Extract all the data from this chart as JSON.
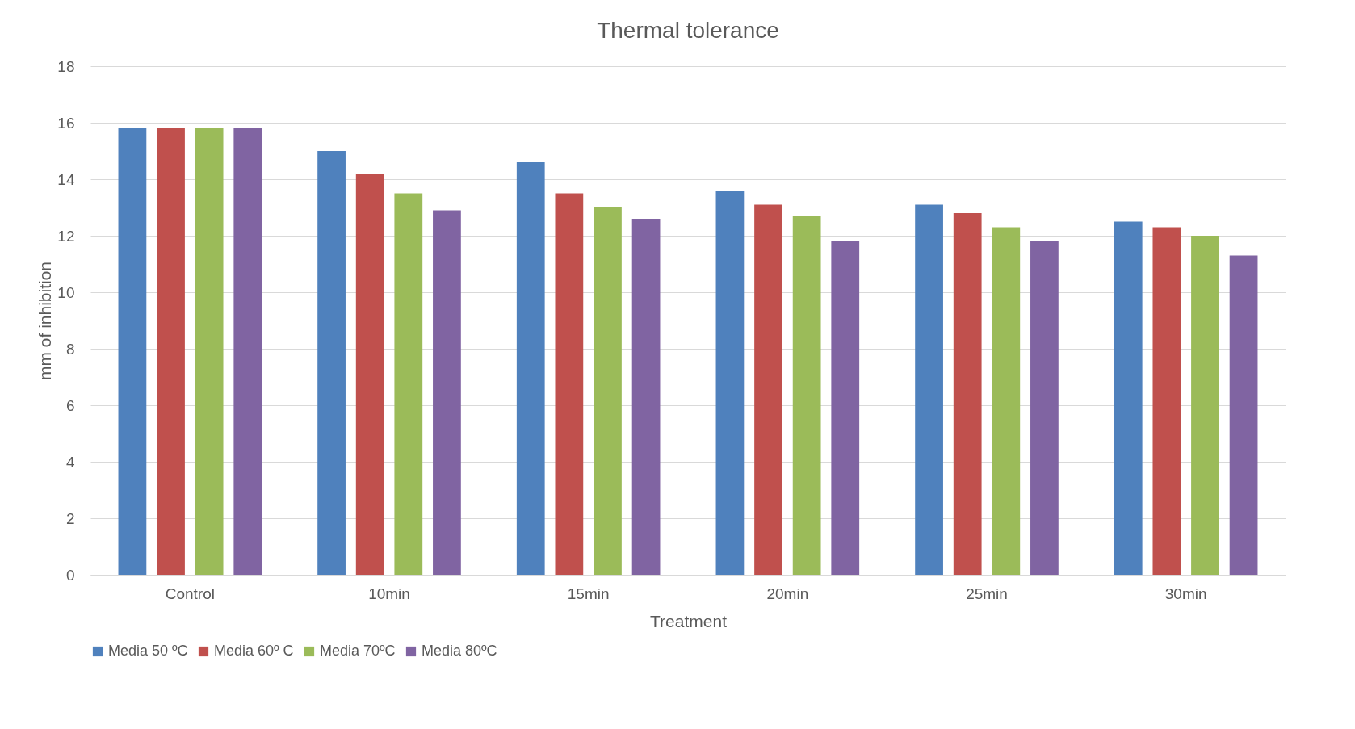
{
  "chart_data": {
    "type": "bar",
    "title": "Thermal tolerance",
    "xlabel": "Treatment",
    "ylabel": "mm of inhibition",
    "categories": [
      "Control",
      "10min",
      "15min",
      "20min",
      "25min",
      "30min"
    ],
    "series": [
      {
        "name": "Media 50 ºC",
        "color": "#4f81bd",
        "values": [
          15.8,
          15.0,
          14.6,
          13.6,
          13.1,
          12.5
        ]
      },
      {
        "name": "Media 60º C",
        "color": "#c0504d",
        "values": [
          15.8,
          14.2,
          13.5,
          13.1,
          12.8,
          12.3
        ]
      },
      {
        "name": "Media 70ºC",
        "color": "#9bbb59",
        "values": [
          15.8,
          13.5,
          13.0,
          12.7,
          12.3,
          12.0
        ]
      },
      {
        "name": "Media 80ºC",
        "color": "#8064a2",
        "values": [
          15.8,
          12.9,
          12.6,
          11.8,
          11.8,
          11.3
        ]
      }
    ],
    "ylim": [
      0,
      18
    ],
    "yticks": [
      0,
      2,
      4,
      6,
      8,
      10,
      12,
      14,
      16,
      18
    ],
    "grid": "y",
    "legend": "bottom"
  }
}
